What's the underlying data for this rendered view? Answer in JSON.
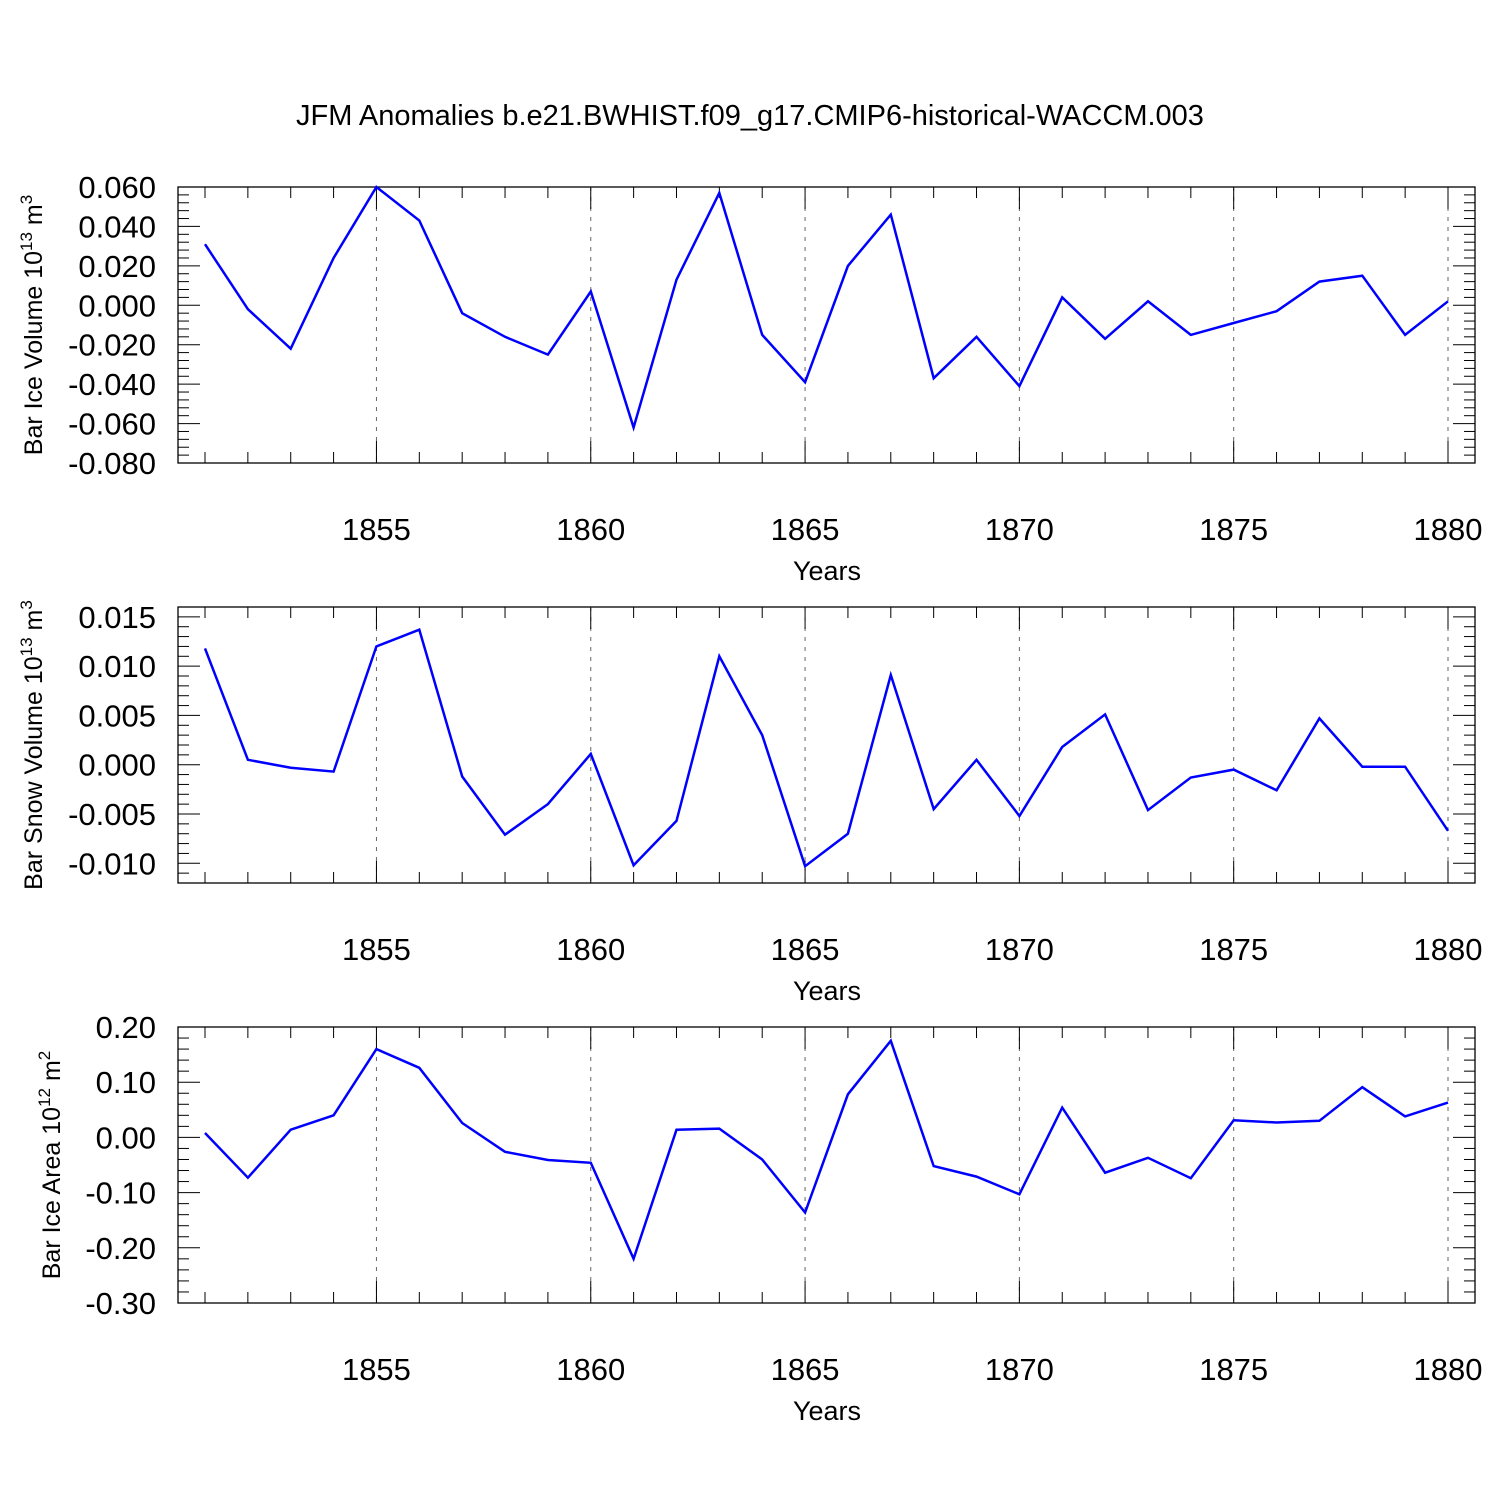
{
  "title": "JFM Anomalies b.e21.BWHIST.f09_g17.CMIP6-historical-WACCM.003",
  "colors": {
    "series": "#0000ff",
    "axis": "#000000",
    "grid": "#666666"
  },
  "chart_data": [
    {
      "type": "line",
      "ylabel_main": "Bar Ice Volume 10",
      "ylabel_exp1": "13",
      "ylabel_unit": " m",
      "ylabel_exp2": "3",
      "xlabel": "Years",
      "xlim": [
        1851,
        1880
      ],
      "ylim": [
        -0.08,
        0.06
      ],
      "yticks": [
        -0.08,
        -0.06,
        -0.04,
        -0.02,
        0.0,
        0.02,
        0.04,
        0.06
      ],
      "ytick_labels": [
        "-0.080",
        "-0.060",
        "-0.040",
        "-0.020",
        "0.000",
        "0.020",
        "0.040",
        "0.060"
      ],
      "xticks": [
        1855,
        1860,
        1865,
        1870,
        1875,
        1880
      ],
      "xtick_labels": [
        "1855",
        "1860",
        "1865",
        "1870",
        "1875",
        "1880"
      ],
      "x": [
        1851,
        1852,
        1853,
        1854,
        1855,
        1856,
        1857,
        1858,
        1859,
        1860,
        1861,
        1862,
        1863,
        1864,
        1865,
        1866,
        1867,
        1868,
        1869,
        1870,
        1871,
        1872,
        1873,
        1874,
        1875,
        1876,
        1877,
        1878,
        1879,
        1880
      ],
      "values": [
        0.031,
        -0.002,
        -0.022,
        0.024,
        0.06,
        0.043,
        -0.004,
        -0.016,
        -0.025,
        0.007,
        -0.062,
        0.013,
        0.057,
        -0.015,
        -0.039,
        0.02,
        0.046,
        -0.037,
        -0.016,
        -0.041,
        0.004,
        -0.017,
        0.002,
        -0.015,
        -0.009,
        -0.003,
        0.012,
        0.015,
        -0.015,
        0.002
      ]
    },
    {
      "type": "line",
      "ylabel_main": "Bar Snow Volume 10",
      "ylabel_exp1": "13",
      "ylabel_unit": " m",
      "ylabel_exp2": "3",
      "xlabel": "Years",
      "xlim": [
        1851,
        1880
      ],
      "ylim": [
        -0.012,
        0.016
      ],
      "yticks": [
        -0.01,
        -0.005,
        0.0,
        0.005,
        0.01,
        0.015
      ],
      "ytick_labels": [
        "-0.010",
        "-0.005",
        "0.000",
        "0.005",
        "0.010",
        "0.015"
      ],
      "xticks": [
        1855,
        1860,
        1865,
        1870,
        1875,
        1880
      ],
      "xtick_labels": [
        "1855",
        "1860",
        "1865",
        "1870",
        "1875",
        "1880"
      ],
      "x": [
        1851,
        1852,
        1853,
        1854,
        1855,
        1856,
        1857,
        1858,
        1859,
        1860,
        1861,
        1862,
        1863,
        1864,
        1865,
        1866,
        1867,
        1868,
        1869,
        1870,
        1871,
        1872,
        1873,
        1874,
        1875,
        1876,
        1877,
        1878,
        1879,
        1880
      ],
      "values": [
        0.0118,
        0.0005,
        -0.0003,
        -0.0007,
        0.012,
        0.0137,
        -0.0012,
        -0.0071,
        -0.004,
        0.0011,
        -0.0102,
        -0.0057,
        0.011,
        0.003,
        -0.0103,
        -0.007,
        0.0091,
        -0.0045,
        0.0005,
        -0.0052,
        0.0018,
        0.0051,
        -0.0046,
        -0.0013,
        -0.0005,
        -0.0026,
        0.0047,
        -0.0002,
        -0.0002,
        -0.0067
      ]
    },
    {
      "type": "line",
      "ylabel_main": "Bar Ice Area 10",
      "ylabel_exp1": "12",
      "ylabel_unit": " m",
      "ylabel_exp2": "2",
      "xlabel": "Years",
      "xlim": [
        1851,
        1880
      ],
      "ylim": [
        -0.3,
        0.2
      ],
      "yticks": [
        -0.3,
        -0.2,
        -0.1,
        0.0,
        0.1,
        0.2
      ],
      "ytick_labels": [
        "-0.30",
        "-0.20",
        "-0.10",
        "0.00",
        "0.10",
        "0.20"
      ],
      "xticks": [
        1855,
        1860,
        1865,
        1870,
        1875,
        1880
      ],
      "xtick_labels": [
        "1855",
        "1860",
        "1865",
        "1870",
        "1875",
        "1880"
      ],
      "x": [
        1851,
        1852,
        1853,
        1854,
        1855,
        1856,
        1857,
        1858,
        1859,
        1860,
        1861,
        1862,
        1863,
        1864,
        1865,
        1866,
        1867,
        1868,
        1869,
        1870,
        1871,
        1872,
        1873,
        1874,
        1875,
        1876,
        1877,
        1878,
        1879,
        1880
      ],
      "values": [
        0.008,
        -0.073,
        0.014,
        0.04,
        0.16,
        0.126,
        0.026,
        -0.026,
        -0.041,
        -0.046,
        -0.22,
        0.014,
        0.016,
        -0.04,
        -0.136,
        0.078,
        0.175,
        -0.052,
        -0.071,
        -0.103,
        0.054,
        -0.064,
        -0.037,
        -0.074,
        0.031,
        0.027,
        0.03,
        0.091,
        0.038,
        0.063
      ]
    }
  ]
}
